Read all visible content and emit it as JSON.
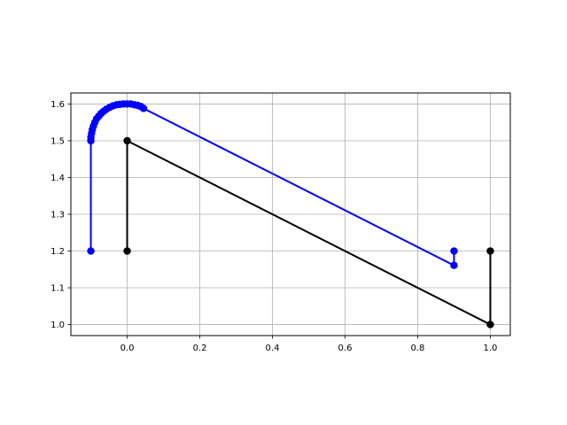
{
  "chart_data": {
    "type": "line",
    "title": "",
    "xlabel": "",
    "ylabel": "",
    "xlim": [
      -0.155,
      1.055
    ],
    "ylim": [
      0.97,
      1.63
    ],
    "x_ticks": [
      0.0,
      0.2,
      0.4,
      0.6,
      0.8,
      1.0
    ],
    "x_tick_labels": [
      "0.0",
      "0.2",
      "0.4",
      "0.6",
      "0.8",
      "1.0"
    ],
    "y_ticks": [
      1.0,
      1.1,
      1.2,
      1.3,
      1.4,
      1.5,
      1.6
    ],
    "y_tick_labels": [
      "1.0",
      "1.1",
      "1.2",
      "1.3",
      "1.4",
      "1.5",
      "1.6"
    ],
    "grid": true,
    "legend": "none",
    "series": [
      {
        "color": "#0000ff",
        "marker": "circle",
        "points": [
          [
            -0.1,
            1.2
          ],
          [
            -0.1,
            1.5
          ],
          [
            -0.1,
            1.51
          ],
          [
            -0.098,
            1.52
          ],
          [
            -0.096,
            1.53
          ],
          [
            -0.093,
            1.54
          ],
          [
            -0.089,
            1.55
          ],
          [
            -0.084,
            1.56
          ],
          [
            -0.078,
            1.567
          ],
          [
            -0.072,
            1.574
          ],
          [
            -0.065,
            1.58
          ],
          [
            -0.057,
            1.586
          ],
          [
            -0.048,
            1.591
          ],
          [
            -0.039,
            1.595
          ],
          [
            -0.029,
            1.598
          ],
          [
            -0.02,
            1.599
          ],
          [
            -0.01,
            1.6
          ],
          [
            0.0,
            1.6
          ],
          [
            0.01,
            1.6
          ],
          [
            0.02,
            1.598
          ],
          [
            0.029,
            1.596
          ],
          [
            0.038,
            1.593
          ],
          [
            0.045,
            1.588
          ],
          [
            0.9,
            1.161
          ],
          [
            0.9,
            1.2
          ]
        ]
      },
      {
        "color": "#000000",
        "marker": "circle",
        "points": [
          [
            0.0,
            1.2
          ],
          [
            0.0,
            1.5
          ],
          [
            1.0,
            1.0
          ],
          [
            1.0,
            1.2
          ]
        ]
      }
    ]
  }
}
